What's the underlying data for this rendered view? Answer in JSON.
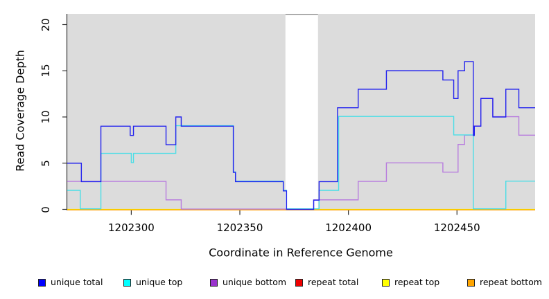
{
  "figure": {
    "background": "#FFFFFF",
    "panel_background": "#DCDCDC",
    "axis_color": "#333333",
    "no_data_band": {
      "x_start": 1202371,
      "x_end": 1202386,
      "fill": "#FFFFFF",
      "top_line_color": "#8C8C8C"
    }
  },
  "legend": {
    "items": [
      {
        "label": "unique total",
        "color": "#0000FF"
      },
      {
        "label": "unique top",
        "color": "#00FFFF"
      },
      {
        "label": "unique bottom",
        "color": "#9932CC"
      },
      {
        "label": "repeat total",
        "color": "#EE0000"
      },
      {
        "label": "repeat top",
        "color": "#FFFF00"
      },
      {
        "label": "repeat bottom",
        "color": "#FFA500"
      }
    ]
  },
  "chart_data": {
    "type": "line",
    "line_style": "step-after",
    "title": "",
    "xlabel": "Coordinate in Reference Genome",
    "ylabel": "Read Coverage Depth",
    "xlim": [
      1202270.5,
      1202486
    ],
    "ylim": [
      0,
      21.3
    ],
    "x_ticks": [
      1202300,
      1202350,
      1202400,
      1202450
    ],
    "x_tick_labels": [
      "1202300",
      "1202350",
      "1202400",
      "1202450"
    ],
    "y_ticks": [
      0,
      5,
      10,
      15,
      20
    ],
    "y_tick_labels": [
      "0",
      "5",
      "10",
      "15",
      "20"
    ],
    "grid": false,
    "legend_position": "bottom",
    "masked_region": {
      "x_start": 1202371,
      "x_end": 1202386
    },
    "series": [
      {
        "name": "unique total",
        "color": "#2222EE",
        "points": [
          [
            1202270.5,
            5
          ],
          [
            1202277,
            3
          ],
          [
            1202286,
            9
          ],
          [
            1202299.5,
            8
          ],
          [
            1202301,
            9
          ],
          [
            1202316,
            7
          ],
          [
            1202320.5,
            10
          ],
          [
            1202323,
            9
          ],
          [
            1202347,
            4
          ],
          [
            1202348,
            3
          ],
          [
            1202370,
            2
          ],
          [
            1202371.5,
            0
          ],
          [
            1202384,
            1
          ],
          [
            1202386.5,
            3
          ],
          [
            1202395,
            11
          ],
          [
            1202404.5,
            13
          ],
          [
            1202417.5,
            15
          ],
          [
            1202443.5,
            14
          ],
          [
            1202448.5,
            12
          ],
          [
            1202450.5,
            15
          ],
          [
            1202453.5,
            16
          ],
          [
            1202457.5,
            8
          ],
          [
            1202458,
            9
          ],
          [
            1202461,
            12
          ],
          [
            1202466.5,
            10
          ],
          [
            1202472.5,
            13
          ],
          [
            1202478.5,
            11
          ]
        ]
      },
      {
        "name": "unique top",
        "color": "#4ADEE6",
        "points": [
          [
            1202270.5,
            2
          ],
          [
            1202276.5,
            0
          ],
          [
            1202286,
            6
          ],
          [
            1202300,
            5
          ],
          [
            1202301,
            6
          ],
          [
            1202320.5,
            9
          ],
          [
            1202347,
            4
          ],
          [
            1202348,
            3
          ],
          [
            1202370,
            2
          ],
          [
            1202371.5,
            0
          ],
          [
            1202386.5,
            2
          ],
          [
            1202395.5,
            10
          ],
          [
            1202448.5,
            8
          ],
          [
            1202457.5,
            0
          ],
          [
            1202472.5,
            3
          ]
        ]
      },
      {
        "name": "unique bottom",
        "color": "#B87CDE",
        "points": [
          [
            1202270.5,
            3
          ],
          [
            1202316,
            1
          ],
          [
            1202323,
            0
          ],
          [
            1202384,
            1
          ],
          [
            1202404.5,
            3
          ],
          [
            1202417.5,
            5
          ],
          [
            1202443.5,
            4
          ],
          [
            1202450.5,
            7
          ],
          [
            1202453.5,
            8
          ],
          [
            1202458,
            9
          ],
          [
            1202461,
            12
          ],
          [
            1202466.5,
            10
          ],
          [
            1202478.5,
            8
          ]
        ]
      },
      {
        "name": "repeat total",
        "color": "#E00000",
        "points": [
          [
            1202270.5,
            0
          ]
        ]
      },
      {
        "name": "repeat top",
        "color": "#F5F500",
        "points": [
          [
            1202270.5,
            0
          ]
        ]
      },
      {
        "name": "repeat bottom",
        "color": "#FF9E00",
        "points": [
          [
            1202270.5,
            0
          ]
        ]
      }
    ]
  }
}
